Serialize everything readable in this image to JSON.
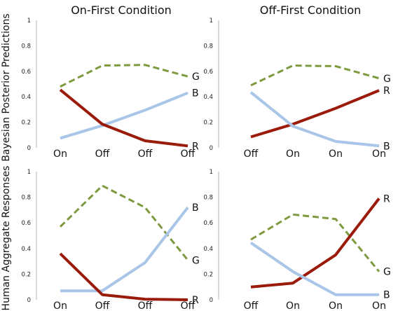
{
  "colors": {
    "R": "#9b1b0b",
    "B": "#a9c6e8",
    "G": "#7d9a3f"
  },
  "row_labels": [
    "Bayesian Posterior Predictions",
    "Human Aggregate Responses"
  ],
  "y_ticks": [
    "0",
    "0.2",
    "0.4",
    "0.6",
    "0.8",
    "1"
  ],
  "chart_data": [
    {
      "type": "line",
      "title": "On-First Condition",
      "categories": [
        "On",
        "Off",
        "Off",
        "Off"
      ],
      "ylim": [
        0,
        1
      ],
      "series": [
        {
          "name": "G",
          "values": [
            0.48,
            0.645,
            0.65,
            0.56
          ]
        },
        {
          "name": "B",
          "values": [
            0.075,
            0.175,
            0.295,
            0.43
          ]
        },
        {
          "name": "R",
          "values": [
            0.455,
            0.185,
            0.055,
            0.015
          ]
        }
      ]
    },
    {
      "type": "line",
      "title": "Off-First Condition",
      "categories": [
        "Off",
        "On",
        "On",
        "On"
      ],
      "ylim": [
        0,
        1
      ],
      "series": [
        {
          "name": "G",
          "values": [
            0.49,
            0.645,
            0.64,
            0.545
          ]
        },
        {
          "name": "R",
          "values": [
            0.085,
            0.185,
            0.31,
            0.45
          ]
        },
        {
          "name": "B",
          "values": [
            0.435,
            0.17,
            0.05,
            0.015
          ]
        }
      ]
    },
    {
      "type": "line",
      "title": "",
      "categories": [
        "On",
        "Off",
        "Off",
        "Off"
      ],
      "ylim": [
        0,
        1
      ],
      "series": [
        {
          "name": "G",
          "values": [
            0.57,
            0.89,
            0.72,
            0.31
          ]
        },
        {
          "name": "B",
          "values": [
            0.07,
            0.07,
            0.29,
            0.72
          ]
        },
        {
          "name": "R",
          "values": [
            0.36,
            0.04,
            0.005,
            0.0
          ]
        }
      ]
    },
    {
      "type": "line",
      "title": "",
      "categories": [
        "Off",
        "On",
        "On",
        "On"
      ],
      "ylim": [
        0,
        1
      ],
      "series": [
        {
          "name": "G",
          "values": [
            0.47,
            0.665,
            0.63,
            0.22
          ]
        },
        {
          "name": "R",
          "values": [
            0.1,
            0.13,
            0.35,
            0.79
          ]
        },
        {
          "name": "B",
          "values": [
            0.445,
            0.22,
            0.04,
            0.04
          ]
        }
      ]
    }
  ]
}
